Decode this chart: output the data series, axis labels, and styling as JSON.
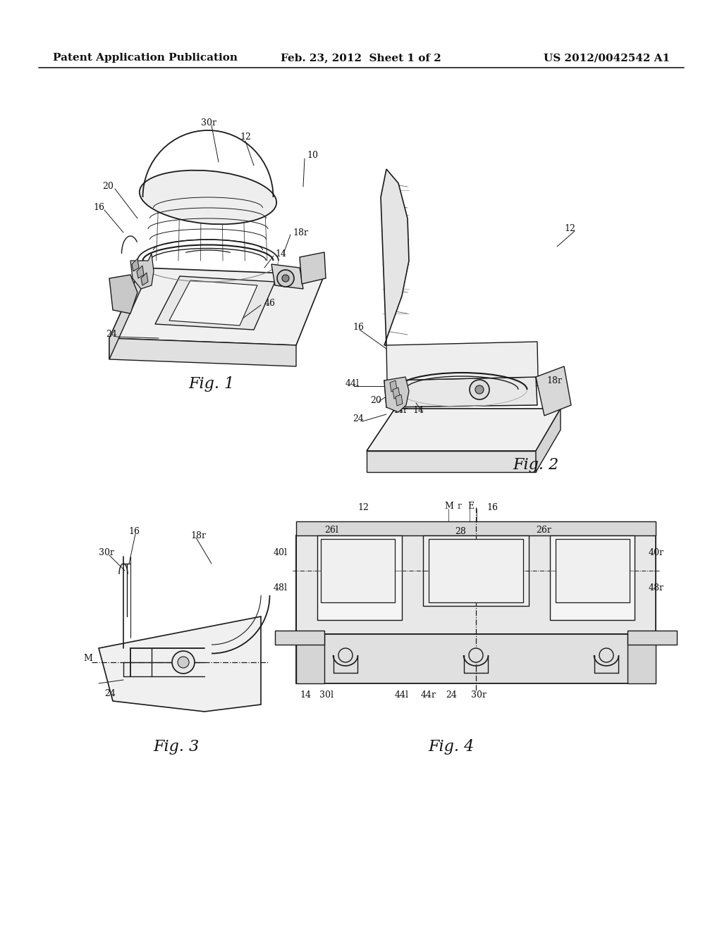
{
  "background_color": "#ffffff",
  "header_left": "Patent Application Publication",
  "header_center": "Feb. 23, 2012  Sheet 1 of 2",
  "header_right": "US 2012/0042542 A1",
  "header_fontsize": 11,
  "line_color": "#1a1a1a",
  "text_color": "#111111",
  "fig1_label": "Fig. 1",
  "fig2_label": "Fig. 2",
  "fig3_label": "Fig. 3",
  "fig4_label": "Fig. 4"
}
